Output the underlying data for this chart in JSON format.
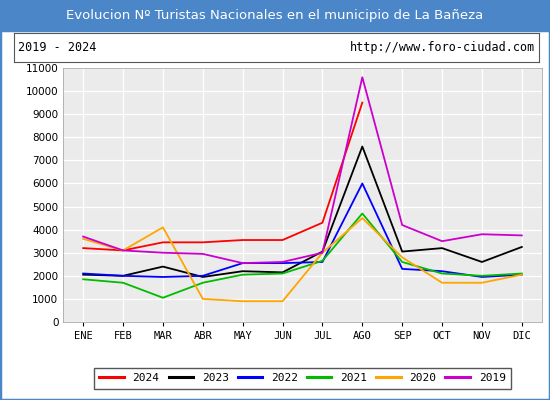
{
  "title": "Evolucion Nº Turistas Nacionales en el municipio de La Bañeza",
  "subtitle_left": "2019 - 2024",
  "subtitle_right": "http://www.foro-ciudad.com",
  "months": [
    "ENE",
    "FEB",
    "MAR",
    "ABR",
    "MAY",
    "JUN",
    "JUL",
    "AGO",
    "SEP",
    "OCT",
    "NOV",
    "DIC"
  ],
  "ylim": [
    0,
    11000
  ],
  "yticks": [
    0,
    1000,
    2000,
    3000,
    4000,
    5000,
    6000,
    7000,
    8000,
    9000,
    10000,
    11000
  ],
  "series": {
    "2024": {
      "color": "#ff0000",
      "values": [
        3200,
        3100,
        3450,
        3450,
        3550,
        3550,
        4300,
        9500,
        null,
        null,
        null,
        null
      ]
    },
    "2023": {
      "color": "#000000",
      "values": [
        2050,
        2000,
        2400,
        1950,
        2200,
        2150,
        3050,
        7600,
        3050,
        3200,
        2600,
        3250
      ]
    },
    "2022": {
      "color": "#0000ff",
      "values": [
        2100,
        2000,
        1950,
        2000,
        2550,
        2550,
        2600,
        6000,
        2300,
        2200,
        1950,
        2050
      ]
    },
    "2021": {
      "color": "#00bb00",
      "values": [
        1850,
        1700,
        1050,
        1700,
        2050,
        2100,
        2650,
        4700,
        2600,
        2100,
        2000,
        2100
      ]
    },
    "2020": {
      "color": "#ffa500",
      "values": [
        3600,
        3100,
        4100,
        1000,
        900,
        900,
        3000,
        4500,
        2800,
        1700,
        1700,
        2050
      ]
    },
    "2019": {
      "color": "#cc00cc",
      "values": [
        3700,
        3100,
        3000,
        2950,
        2550,
        2600,
        3000,
        10600,
        4200,
        3500,
        3800,
        3750
      ]
    }
  },
  "legend_order": [
    "2024",
    "2023",
    "2022",
    "2021",
    "2020",
    "2019"
  ],
  "title_bg_color": "#4a86c8",
  "title_text_color": "#ffffff",
  "plot_bg_color": "#ebebeb",
  "grid_color": "#ffffff",
  "fig_bg": "#ffffff",
  "outer_border_color": "#4a86c8"
}
